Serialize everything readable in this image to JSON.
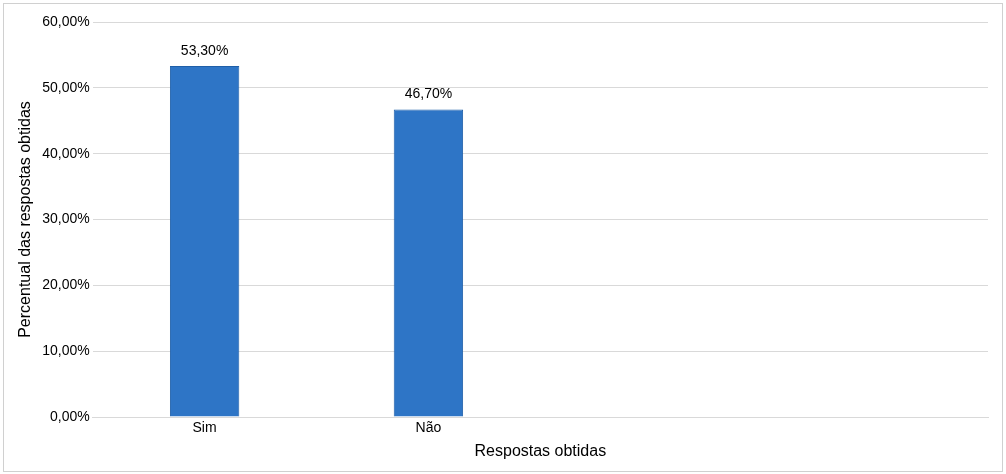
{
  "chart_data": {
    "type": "bar",
    "xlabel": "Respostas obtidas",
    "ylabel": "Percentual das respostas obtidas",
    "categories": [
      "Sim",
      "Não",
      null,
      null
    ],
    "values": [
      53.3,
      46.7,
      null,
      null
    ],
    "value_labels": [
      "53,30%",
      "46,70%",
      null,
      null
    ],
    "color": "#2e75c6",
    "ylim": [
      0,
      60
    ],
    "yticks": [
      {
        "value": 0,
        "label": "0,00%"
      },
      {
        "value": 10,
        "label": "10,00%"
      },
      {
        "value": 20,
        "label": "20,00%"
      },
      {
        "value": 30,
        "label": "30,00%"
      },
      {
        "value": 40,
        "label": "40,00%"
      },
      {
        "value": 50,
        "label": "50,00%"
      },
      {
        "value": 60,
        "label": "60,00%"
      }
    ],
    "grid": "y",
    "legend": false
  }
}
